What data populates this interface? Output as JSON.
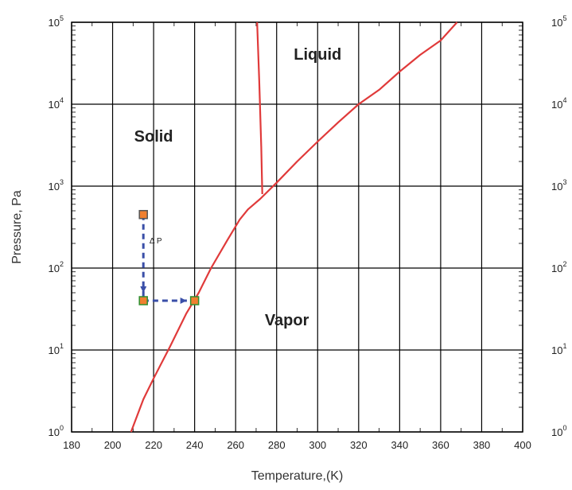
{
  "chart_data": {
    "type": "line",
    "xlabel": "Temperature,(K)",
    "ylabel": "Pressure, Pa",
    "xlim": [
      180,
      400
    ],
    "ylim": [
      1,
      100000
    ],
    "yscale": "log",
    "grid": true,
    "x_ticks": [
      180,
      200,
      220,
      240,
      260,
      280,
      300,
      320,
      340,
      360,
      380,
      400
    ],
    "y_ticks": [
      1,
      10,
      100,
      1000,
      10000,
      100000
    ],
    "y_tick_labels": [
      {
        "base": "10",
        "exp": "0"
      },
      {
        "base": "10",
        "exp": "1"
      },
      {
        "base": "10",
        "exp": "2"
      },
      {
        "base": "10",
        "exp": "3"
      },
      {
        "base": "10",
        "exp": "4"
      },
      {
        "base": "10",
        "exp": "5"
      }
    ],
    "regions": [
      {
        "label": "Solid",
        "x": 220,
        "y": 3500
      },
      {
        "label": "Liquid",
        "x": 300,
        "y": 35000
      },
      {
        "label": "Vapor",
        "x": 285,
        "y": 20
      }
    ],
    "series": [
      {
        "color": "#e03a3a",
        "x": [
          209,
          215,
          220,
          228,
          236,
          242,
          248,
          256,
          262,
          266,
          272,
          280,
          290,
          300,
          310,
          320,
          330,
          340,
          350,
          360,
          368
        ],
        "y": [
          1,
          2.5,
          4.5,
          11,
          28,
          50,
          100,
          220,
          390,
          520,
          700,
          1100,
          2000,
          3500,
          6000,
          10000,
          15000,
          25000,
          40000,
          60000,
          100000
        ]
      },
      {
        "color": "#e03a3a",
        "x": [
          273,
          272.5,
          271.5,
          270.5
        ],
        "y": [
          800,
          3000,
          20000,
          100000
        ]
      }
    ],
    "annotations": {
      "label": "Δ P",
      "label_pos": {
        "x": 218,
        "y": 200
      },
      "path": [
        {
          "x": 215,
          "y": 450
        },
        {
          "x": 215,
          "y": 40
        },
        {
          "x": 240,
          "y": 40
        }
      ],
      "line_color": "#3a4fa8",
      "markers": [
        {
          "x": 215,
          "y": 450,
          "fill": "#f08030",
          "stroke": "#555555"
        },
        {
          "x": 215,
          "y": 40,
          "fill": "#f08030",
          "stroke": "#2f8f2f"
        },
        {
          "x": 240,
          "y": 40,
          "fill": "#f08030",
          "stroke": "#2f8f2f"
        }
      ]
    }
  }
}
